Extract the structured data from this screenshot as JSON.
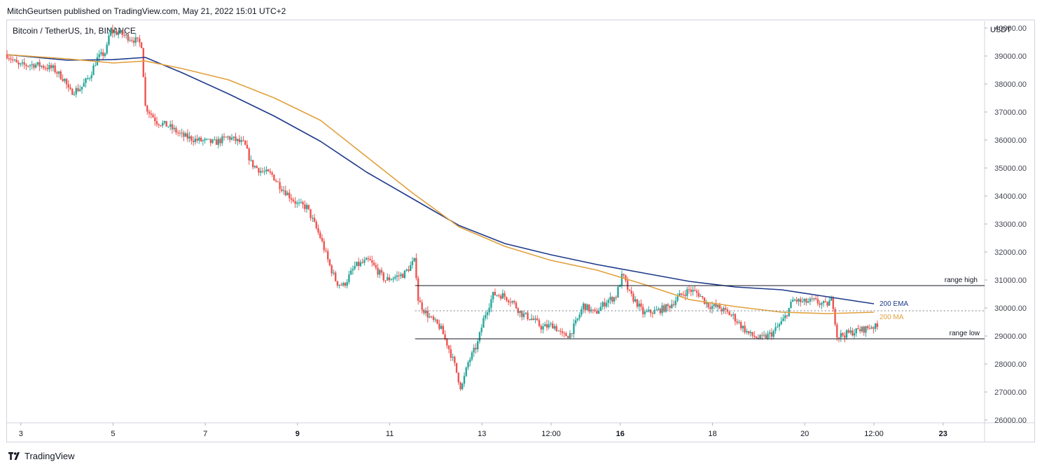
{
  "header": {
    "attribution": "MitchGeurtsen published on TradingView.com, May 21, 2022 15:01 UTC+2",
    "symbol": "Bitcoin / TetherUS, 1h, BINANCE"
  },
  "footer": {
    "brand": "TradingView"
  },
  "colors": {
    "up": "#26a69a",
    "down": "#ef5350",
    "ema": "#1e3a8a",
    "ma": "#e1a03c",
    "level": "#131722"
  },
  "chart_data": {
    "type": "candlestick",
    "y_axis_unit": "USDT",
    "ylim": [
      25900,
      40250
    ],
    "y_ticks": [
      "40000.00",
      "39000.00",
      "38000.00",
      "37000.00",
      "36000.00",
      "35000.00",
      "34000.00",
      "33000.00",
      "32000.00",
      "31000.00",
      "30000.00",
      "29000.00",
      "28000.00",
      "27000.00",
      "26000.00"
    ],
    "x_range": [
      2.7,
      23.9
    ],
    "x_ticks": [
      {
        "label": "3",
        "x": 3,
        "bold": false
      },
      {
        "label": "5",
        "x": 5,
        "bold": false
      },
      {
        "label": "7",
        "x": 7,
        "bold": false
      },
      {
        "label": "9",
        "x": 9,
        "bold": true
      },
      {
        "label": "11",
        "x": 11,
        "bold": false
      },
      {
        "label": "13",
        "x": 13,
        "bold": false
      },
      {
        "label": "12:00",
        "x": 14.5,
        "bold": false
      },
      {
        "label": "16",
        "x": 16,
        "bold": true
      },
      {
        "label": "18",
        "x": 18,
        "bold": false
      },
      {
        "label": "20",
        "x": 20,
        "bold": false
      },
      {
        "label": "12:00",
        "x": 21.5,
        "bold": false
      },
      {
        "label": "23",
        "x": 23,
        "bold": true
      }
    ],
    "price_path": [
      [
        2.7,
        39050
      ],
      [
        2.95,
        38650
      ],
      [
        3.3,
        38700
      ],
      [
        3.7,
        38550
      ],
      [
        3.95,
        38150
      ],
      [
        4.05,
        37700
      ],
      [
        4.3,
        37850
      ],
      [
        4.5,
        38300
      ],
      [
        4.65,
        38900
      ],
      [
        4.85,
        39150
      ],
      [
        4.93,
        39900
      ],
      [
        5.15,
        39800
      ],
      [
        5.5,
        39550
      ],
      [
        5.62,
        39400
      ],
      [
        5.7,
        37200
      ],
      [
        5.95,
        36650
      ],
      [
        6.2,
        36500
      ],
      [
        6.5,
        36150
      ],
      [
        6.8,
        36000
      ],
      [
        7.2,
        35900
      ],
      [
        7.5,
        36100
      ],
      [
        7.85,
        35850
      ],
      [
        8.0,
        35150
      ],
      [
        8.2,
        34900
      ],
      [
        8.45,
        34750
      ],
      [
        8.6,
        34400
      ],
      [
        9.0,
        33700
      ],
      [
        9.2,
        33600
      ],
      [
        9.5,
        32500
      ],
      [
        9.7,
        31500
      ],
      [
        9.85,
        30900
      ],
      [
        10.0,
        30800
      ],
      [
        10.25,
        31500
      ],
      [
        10.55,
        31700
      ],
      [
        10.9,
        31000
      ],
      [
        11.3,
        31200
      ],
      [
        11.55,
        31700
      ],
      [
        11.62,
        30250
      ],
      [
        11.75,
        29900
      ],
      [
        11.9,
        29600
      ],
      [
        12.1,
        29300
      ],
      [
        12.25,
        28700
      ],
      [
        12.4,
        28000
      ],
      [
        12.55,
        27100
      ],
      [
        12.7,
        28050
      ],
      [
        12.9,
        28700
      ],
      [
        13.05,
        29700
      ],
      [
        13.25,
        30500
      ],
      [
        13.45,
        30450
      ],
      [
        13.65,
        30250
      ],
      [
        13.85,
        29800
      ],
      [
        14.1,
        29600
      ],
      [
        14.3,
        29300
      ],
      [
        14.55,
        29400
      ],
      [
        14.75,
        29000
      ],
      [
        14.9,
        29050
      ],
      [
        15.05,
        29500
      ],
      [
        15.2,
        30100
      ],
      [
        15.45,
        29800
      ],
      [
        15.7,
        30250
      ],
      [
        15.9,
        30400
      ],
      [
        16.05,
        31200
      ],
      [
        16.2,
        30500
      ],
      [
        16.35,
        30200
      ],
      [
        16.5,
        29800
      ],
      [
        16.8,
        29900
      ],
      [
        17.05,
        30050
      ],
      [
        17.3,
        30450
      ],
      [
        17.5,
        30650
      ],
      [
        17.7,
        30500
      ],
      [
        17.9,
        30100
      ],
      [
        18.15,
        30000
      ],
      [
        18.45,
        29700
      ],
      [
        18.6,
        29400
      ],
      [
        18.8,
        29050
      ],
      [
        19.05,
        28900
      ],
      [
        19.3,
        29100
      ],
      [
        19.55,
        29600
      ],
      [
        19.75,
        30300
      ],
      [
        19.95,
        30200
      ],
      [
        20.2,
        30250
      ],
      [
        20.45,
        30100
      ],
      [
        20.6,
        30300
      ],
      [
        20.7,
        29000
      ],
      [
        20.85,
        29050
      ],
      [
        21.05,
        29150
      ],
      [
        21.3,
        29250
      ],
      [
        21.45,
        29350
      ],
      [
        21.6,
        29300
      ]
    ],
    "series": [
      {
        "name": "200 EMA",
        "points": [
          [
            2.7,
            39050
          ],
          [
            4.0,
            38850
          ],
          [
            5.0,
            38870
          ],
          [
            5.7,
            38950
          ],
          [
            6.5,
            38400
          ],
          [
            7.5,
            37650
          ],
          [
            8.5,
            36850
          ],
          [
            9.5,
            35950
          ],
          [
            10.5,
            34850
          ],
          [
            11.5,
            33900
          ],
          [
            12.5,
            32950
          ],
          [
            13.5,
            32300
          ],
          [
            14.5,
            31900
          ],
          [
            15.5,
            31550
          ],
          [
            16.5,
            31250
          ],
          [
            17.5,
            30950
          ],
          [
            18.5,
            30750
          ],
          [
            19.5,
            30650
          ],
          [
            20.5,
            30400
          ],
          [
            21.5,
            30150
          ]
        ]
      },
      {
        "name": "200 MA",
        "points": [
          [
            2.7,
            39050
          ],
          [
            4.0,
            38900
          ],
          [
            5.0,
            38750
          ],
          [
            5.7,
            38820
          ],
          [
            6.5,
            38550
          ],
          [
            7.5,
            38150
          ],
          [
            8.5,
            37500
          ],
          [
            9.5,
            36700
          ],
          [
            10.5,
            35400
          ],
          [
            11.5,
            34100
          ],
          [
            12.5,
            32900
          ],
          [
            13.5,
            32200
          ],
          [
            14.5,
            31700
          ],
          [
            15.5,
            31350
          ],
          [
            16.5,
            30850
          ],
          [
            17.5,
            30300
          ],
          [
            18.5,
            30050
          ],
          [
            19.5,
            29850
          ],
          [
            20.5,
            29800
          ],
          [
            21.5,
            29850
          ]
        ]
      }
    ],
    "levels": [
      {
        "name": "range high",
        "value": 30800,
        "x_start": 11.55,
        "x_end": 23.9,
        "style": "solid"
      },
      {
        "name": "",
        "value": 29900,
        "x_start": 11.55,
        "x_end": 23.9,
        "style": "dotted"
      },
      {
        "name": "range low",
        "value": 28900,
        "x_start": 11.55,
        "x_end": 23.9,
        "style": "solid"
      }
    ],
    "labels": [
      {
        "text": "range high",
        "anchor": "above-right"
      },
      {
        "text": "range low",
        "anchor": "above-right"
      },
      {
        "text": "200 EMA",
        "anchor": "series-end"
      },
      {
        "text": "200 MA",
        "anchor": "series-end"
      }
    ]
  }
}
